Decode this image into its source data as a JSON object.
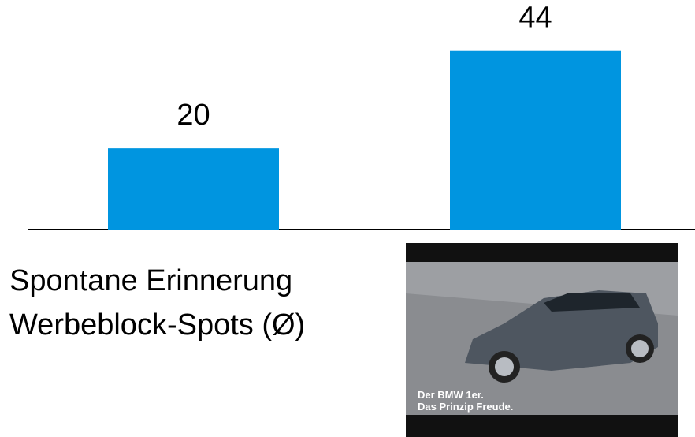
{
  "chart_data": {
    "type": "bar",
    "categories": [
      null,
      null
    ],
    "values": [
      20,
      44
    ],
    "color": "#0095e0",
    "ylim": [
      0,
      56
    ],
    "caption": [
      "Spontane Erinnerung",
      "Werbeblock-Spots (Ø)"
    ],
    "image_text": [
      "Der BMW 1er.",
      "Das Prinzip Freude."
    ]
  }
}
